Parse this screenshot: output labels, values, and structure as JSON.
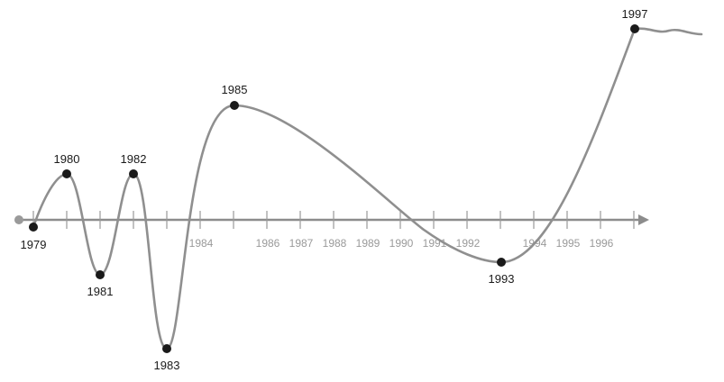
{
  "axis": {
    "tick_labels": [
      "1984",
      "1986",
      "1987",
      "1988",
      "1989",
      "1990",
      "1991",
      "1992",
      "1994",
      "1995",
      "1996"
    ]
  },
  "points": [
    {
      "year": "1979",
      "label_pos": "below"
    },
    {
      "year": "1980",
      "label_pos": "above"
    },
    {
      "year": "1981",
      "label_pos": "below"
    },
    {
      "year": "1982",
      "label_pos": "above"
    },
    {
      "year": "1983",
      "label_pos": "below"
    },
    {
      "year": "1985",
      "label_pos": "above"
    },
    {
      "year": "1993",
      "label_pos": "below"
    },
    {
      "year": "1997",
      "label_pos": "above"
    }
  ],
  "colors": {
    "curve": "#8f8f8f",
    "axis": "#8c8c8c",
    "point": "#1a1a1a",
    "tick_label": "#9a9a9a"
  }
}
